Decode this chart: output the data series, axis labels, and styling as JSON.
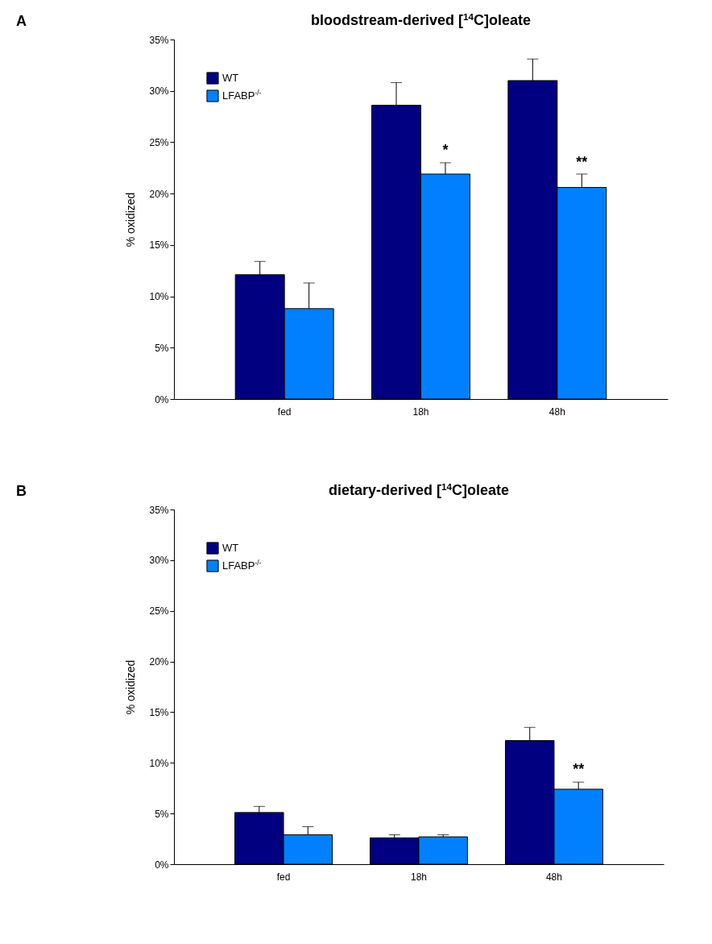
{
  "chart_data": [
    {
      "type": "bar",
      "title": "bloodstream-derived [$^{14}$C]oleate",
      "ylabel": "% oxidized",
      "categories": [
        "fed",
        "18h",
        "48h"
      ],
      "series": [
        {
          "name": "WT",
          "color": "#000080",
          "values": [
            12.1,
            28.6,
            31.0
          ],
          "errors": [
            [
              12.1,
              13.4
            ],
            [
              28.6,
              30.8
            ],
            [
              31.0,
              33.1
            ]
          ]
        },
        {
          "name": "LFABP$^{-/-}$",
          "color": "#0080ff",
          "values": [
            8.8,
            21.9,
            20.6
          ],
          "errors": [
            [
              8.8,
              11.3
            ],
            [
              21.9,
              23.0
            ],
            [
              20.6,
              21.9
            ]
          ]
        }
      ],
      "ylim": [
        0,
        35
      ],
      "yticks": [
        {
          "value": 0,
          "label": "0%"
        },
        {
          "value": 5,
          "label": "5%"
        },
        {
          "value": 10,
          "label": "10%"
        },
        {
          "value": 15,
          "label": "15%"
        },
        {
          "value": 20,
          "label": "20%"
        },
        {
          "value": 25,
          "label": "25%"
        },
        {
          "value": 30,
          "label": "30%"
        },
        {
          "value": 35,
          "label": "35%"
        }
      ],
      "legend": "top left",
      "grid": false,
      "annotations": [
        "A",
        {
          "text": "*",
          "x": "18h",
          "y": 23.5
        },
        {
          "text": "**",
          "x": "48h",
          "y": 22.3
        }
      ]
    },
    {
      "type": "bar",
      "title": "dietary-derived [$^{14}$C]oleate",
      "ylabel": "% oxidized",
      "categories": [
        "fed",
        "18h",
        "48h"
      ],
      "series": [
        {
          "name": "WT",
          "color": "#000080",
          "values": [
            5.1,
            2.6,
            12.2
          ],
          "errors": [
            [
              5.1,
              5.7
            ],
            [
              2.6,
              2.9
            ],
            [
              12.2,
              13.5
            ]
          ]
        },
        {
          "name": "LFABP$^{-/-}$",
          "color": "#0080ff",
          "values": [
            2.9,
            2.7,
            7.4
          ],
          "errors": [
            [
              2.9,
              3.7
            ],
            [
              2.7,
              2.9
            ],
            [
              7.4,
              8.1
            ]
          ]
        }
      ],
      "ylim": [
        0,
        35
      ],
      "yticks": [
        {
          "value": 0,
          "label": "0%"
        },
        {
          "value": 5,
          "label": "5%"
        },
        {
          "value": 10,
          "label": "10%"
        },
        {
          "value": 15,
          "label": "15%"
        },
        {
          "value": 20,
          "label": "20%"
        },
        {
          "value": 25,
          "label": "25%"
        },
        {
          "value": 30,
          "label": "30%"
        },
        {
          "value": 35,
          "label": "35%"
        }
      ],
      "legend": "top left",
      "grid": false,
      "annotations": [
        "B",
        {
          "text": "**",
          "x": "48h",
          "y": 8.6
        }
      ]
    }
  ]
}
